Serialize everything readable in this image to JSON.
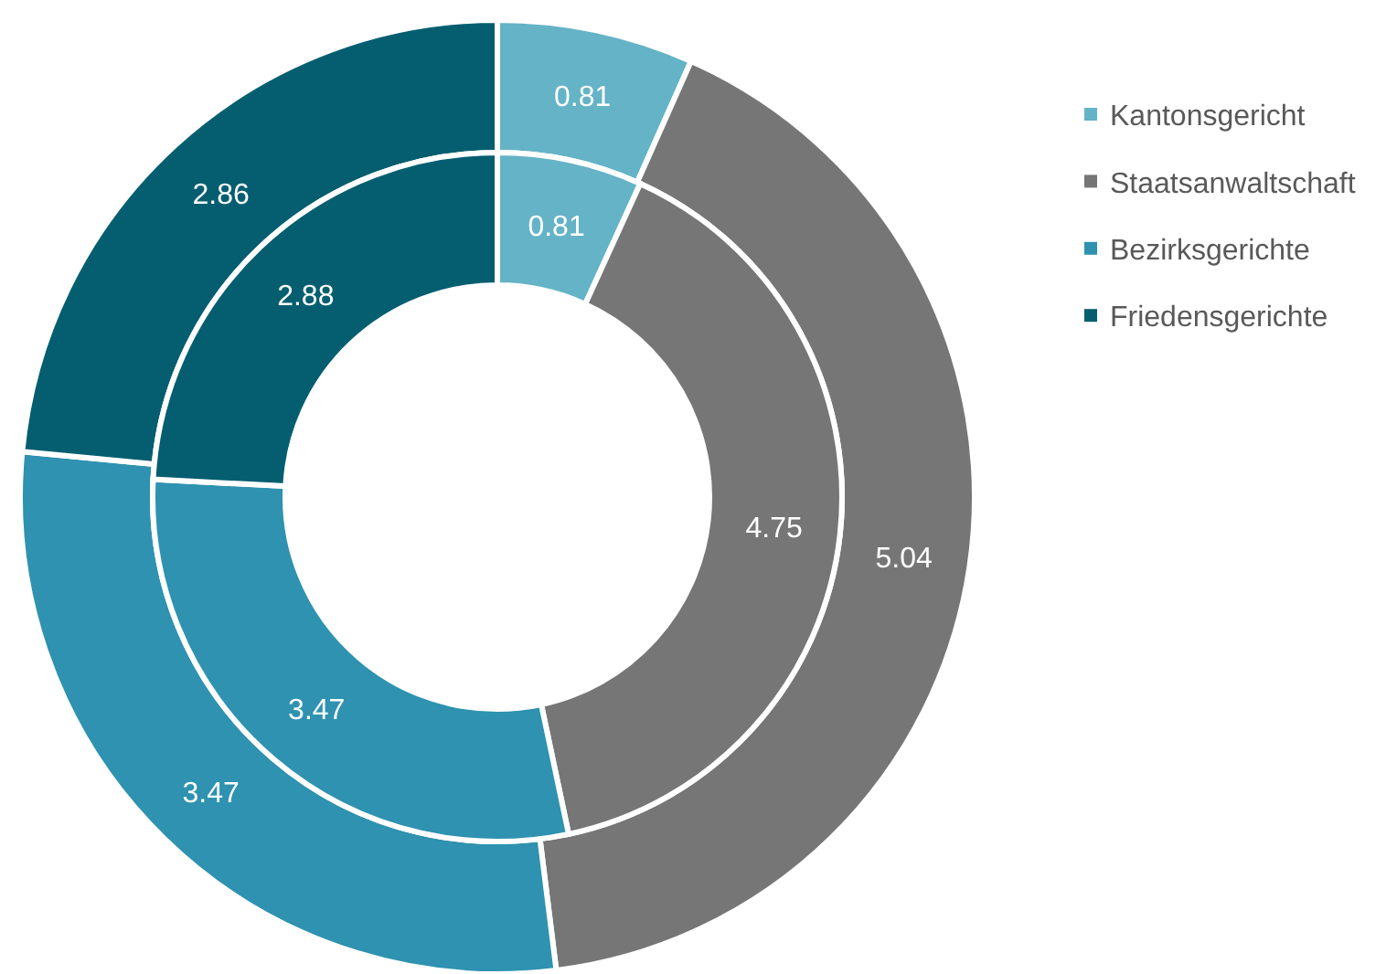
{
  "chart_data": {
    "type": "donut",
    "categories": [
      "Kantonsgericht",
      "Staatsanwaltschaft",
      "Bezirksgerichte",
      "Friedensgerichte"
    ],
    "colors": [
      "#64b3c6",
      "#767676",
      "#2e92b0",
      "#045e70"
    ],
    "series": [
      {
        "values": [
          0.81,
          5.04,
          3.47,
          2.86
        ]
      },
      {
        "values": [
          0.81,
          4.75,
          3.47,
          2.88
        ]
      }
    ],
    "data_labels": true,
    "legend": "right"
  }
}
